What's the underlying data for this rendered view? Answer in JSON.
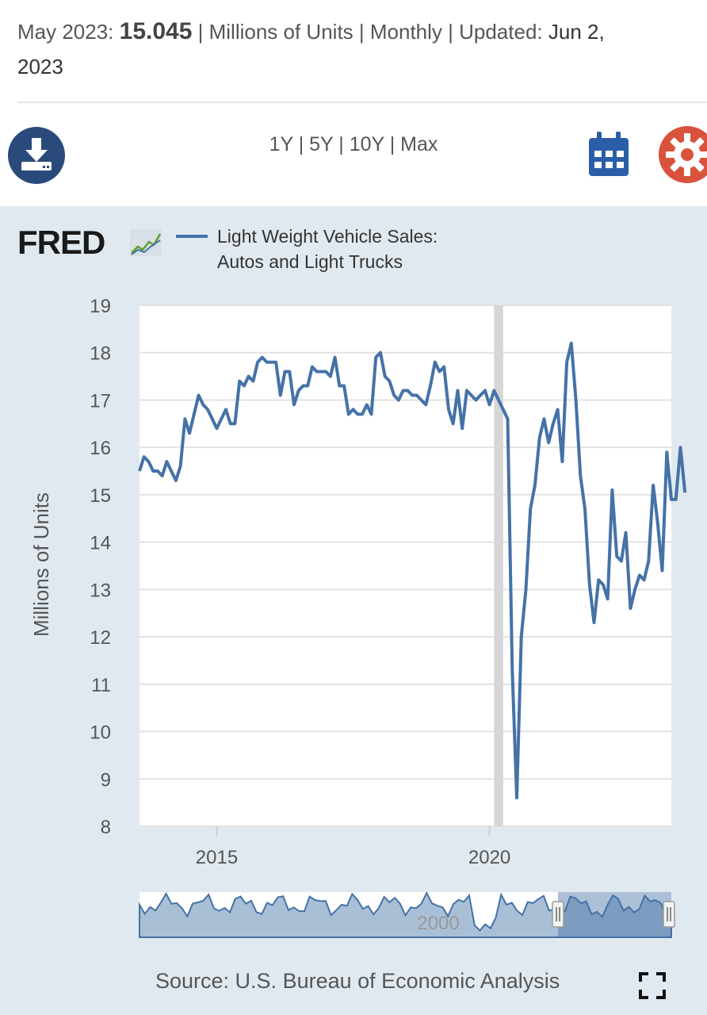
{
  "summary": {
    "period": "May 2023:",
    "value": "15.045",
    "units": "| Millions of Units | Monthly | Updated:",
    "updated": "Jun 2,",
    "updated_year": "2023"
  },
  "toolbar": {
    "download_icon": "download-icon",
    "ranges": [
      "1Y",
      "5Y",
      "10Y",
      "Max"
    ],
    "separator": "|",
    "calendar_icon": "calendar-icon",
    "settings_icon": "gear-icon"
  },
  "logo_text": "FRED",
  "source": "Source: U.S. Bureau of Economic Analysis",
  "navigator": {
    "label": "2000"
  },
  "colors": {
    "series": "#4572a7",
    "recession": "#d6d6d6",
    "panel": "#e1e9f0",
    "brand": "#2a4a7b",
    "gear": "#d9533c"
  },
  "chart_data": {
    "type": "line",
    "title": "",
    "legend": "Light Weight Vehicle Sales: Autos and Light Trucks",
    "legend_lines": [
      "Light Weight Vehicle Sales:",
      "Autos and Light Trucks"
    ],
    "ylabel": "Millions of Units",
    "xlabel": "",
    "ylim": [
      8,
      19
    ],
    "yticks": [
      8,
      9,
      10,
      11,
      12,
      13,
      14,
      15,
      16,
      17,
      18,
      19
    ],
    "xlim": [
      "2013-08",
      "2023-05"
    ],
    "xticks": [
      "2015",
      "2020"
    ],
    "grid": true,
    "legend_position": "top",
    "recession": {
      "start": "2020-02",
      "end": "2020-04"
    },
    "series": [
      {
        "name": "Light Weight Vehicle Sales: Autos and Light Trucks",
        "frequency": "monthly",
        "start": "2013-08",
        "values": [
          15.5,
          15.8,
          15.7,
          15.5,
          15.5,
          15.4,
          15.7,
          15.5,
          15.3,
          15.6,
          16.6,
          16.3,
          16.7,
          17.1,
          16.9,
          16.8,
          16.6,
          16.4,
          16.6,
          16.8,
          16.5,
          16.5,
          17.4,
          17.3,
          17.5,
          17.4,
          17.8,
          17.9,
          17.8,
          17.8,
          17.8,
          17.1,
          17.6,
          17.6,
          16.9,
          17.2,
          17.3,
          17.3,
          17.7,
          17.6,
          17.6,
          17.6,
          17.5,
          17.9,
          17.3,
          17.3,
          16.7,
          16.8,
          16.7,
          16.7,
          16.9,
          16.7,
          17.9,
          18.0,
          17.5,
          17.4,
          17.1,
          17.0,
          17.2,
          17.2,
          17.1,
          17.1,
          17.0,
          16.9,
          17.3,
          17.8,
          17.6,
          17.7,
          16.8,
          16.5,
          17.2,
          16.4,
          17.2,
          17.1,
          17.0,
          17.1,
          17.2,
          16.9,
          17.2,
          17.0,
          16.8,
          16.6,
          11.3,
          8.6,
          12.0,
          13.0,
          14.7,
          15.2,
          16.2,
          16.6,
          16.1,
          16.5,
          16.8,
          15.7,
          17.8,
          18.2,
          17.0,
          15.4,
          14.7,
          13.1,
          12.3,
          13.2,
          13.1,
          12.8,
          15.1,
          13.7,
          13.6,
          14.2,
          12.6,
          13.0,
          13.3,
          13.2,
          13.6,
          15.2,
          14.4,
          13.4,
          15.9,
          14.9,
          14.9,
          16.0,
          15.045
        ]
      }
    ]
  }
}
